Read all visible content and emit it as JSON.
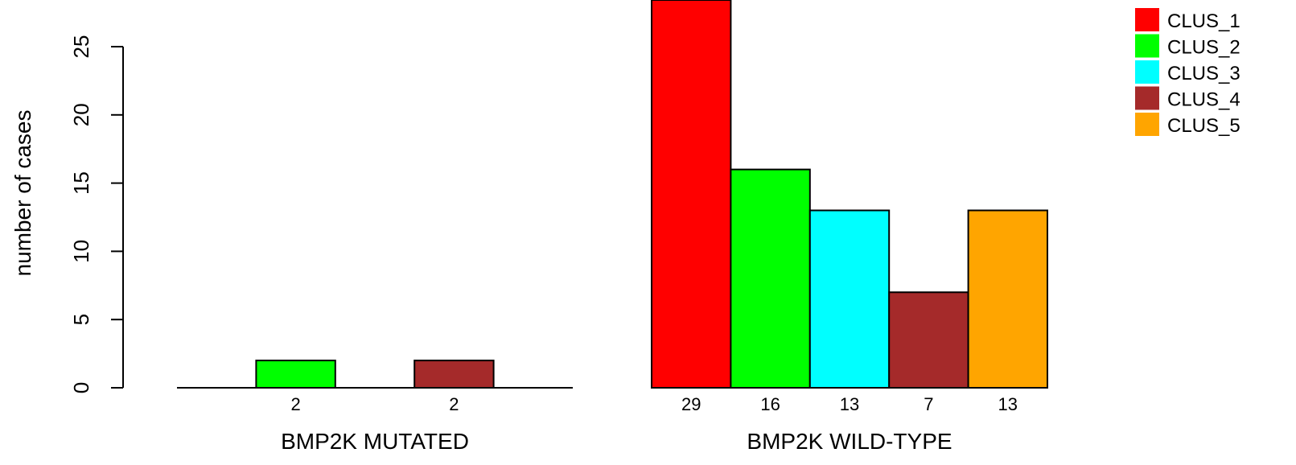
{
  "chart_data": {
    "type": "bar",
    "ylabel": "number of cases",
    "ylim": [
      0,
      25
    ],
    "yticks": [
      0,
      5,
      10,
      15,
      20,
      25
    ],
    "series_names": [
      "CLUS_1",
      "CLUS_2",
      "CLUS_3",
      "CLUS_4",
      "CLUS_5"
    ],
    "colors": {
      "CLUS_1": "#ff0000",
      "CLUS_2": "#00ff00",
      "CLUS_3": "#00ffff",
      "CLUS_4": "#a52a2a",
      "CLUS_5": "#ffa500"
    },
    "groups": [
      {
        "label": "BMP2K MUTATED",
        "values": [
          0,
          2,
          0,
          2,
          0
        ],
        "data_labels": [
          "",
          "2",
          "",
          "2",
          ""
        ]
      },
      {
        "label": "BMP2K WILD-TYPE",
        "values": [
          29,
          16,
          13,
          7,
          13
        ],
        "data_labels": [
          "29",
          "16",
          "13",
          "7",
          "13"
        ]
      }
    ],
    "legend": {
      "position": "top-right",
      "entries": [
        "CLUS_1",
        "CLUS_2",
        "CLUS_3",
        "CLUS_4",
        "CLUS_5"
      ]
    },
    "grid": false
  }
}
